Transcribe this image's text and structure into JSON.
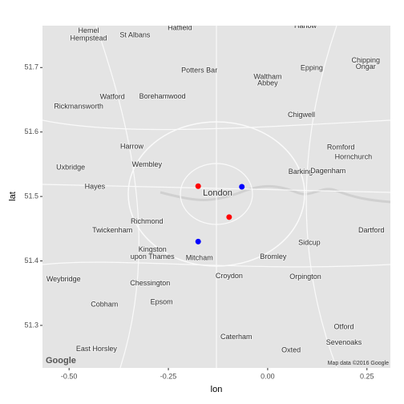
{
  "chart_data": {
    "type": "scatter",
    "x_label": "lon",
    "y_label": "lat",
    "xlim": [
      -0.567,
      0.309
    ],
    "ylim": [
      51.234,
      51.765
    ],
    "xticks": [
      {
        "value": -0.5,
        "label": "-0.50"
      },
      {
        "value": -0.25,
        "label": "-0.25"
      },
      {
        "value": 0,
        "label": "0.00"
      },
      {
        "value": 0.25,
        "label": "0.25"
      }
    ],
    "yticks": [
      51.3,
      51.4,
      51.5,
      51.6,
      51.7
    ],
    "x": [
      -0.175,
      -0.065,
      -0.097,
      -0.175
    ],
    "y": [
      51.516,
      51.515,
      51.468,
      51.43
    ],
    "colors": [
      "#ff0000",
      "#0000ff",
      "#ff0000",
      "#0000ff"
    ],
    "map_labels": [
      {
        "text": "Hemel",
        "lon": -0.451,
        "lat": 51.757
      },
      {
        "text": "Hempstead",
        "lon": -0.451,
        "lat": 51.745
      },
      {
        "text": "St Albans",
        "lon": -0.334,
        "lat": 51.75
      },
      {
        "text": "Hatfield",
        "lon": -0.221,
        "lat": 51.761
      },
      {
        "text": "Harlow",
        "lon": 0.095,
        "lat": 51.764
      },
      {
        "text": "Potters Bar",
        "lon": -0.172,
        "lat": 51.695
      },
      {
        "text": "Waltham",
        "lon": 0.0,
        "lat": 51.685
      },
      {
        "text": "Abbey",
        "lon": 0.0,
        "lat": 51.675
      },
      {
        "text": "Epping",
        "lon": 0.111,
        "lat": 51.699
      },
      {
        "text": "Chipping",
        "lon": 0.247,
        "lat": 51.711
      },
      {
        "text": "Ongar",
        "lon": 0.247,
        "lat": 51.701
      },
      {
        "text": "Watford",
        "lon": -0.391,
        "lat": 51.654
      },
      {
        "text": "Borehamwood",
        "lon": -0.265,
        "lat": 51.655
      },
      {
        "text": "Rickmansworth",
        "lon": -0.476,
        "lat": 51.639
      },
      {
        "text": "Chigwell",
        "lon": 0.085,
        "lat": 51.626
      },
      {
        "text": "Harrow",
        "lon": -0.342,
        "lat": 51.577
      },
      {
        "text": "Romford",
        "lon": 0.184,
        "lat": 51.576
      },
      {
        "text": "Hornchurch",
        "lon": 0.216,
        "lat": 51.561
      },
      {
        "text": "Wembley",
        "lon": -0.304,
        "lat": 51.549
      },
      {
        "text": "Uxbridge",
        "lon": -0.496,
        "lat": 51.545
      },
      {
        "text": "Barking",
        "lon": 0.083,
        "lat": 51.538
      },
      {
        "text": "Dagenham",
        "lon": 0.152,
        "lat": 51.539
      },
      {
        "text": "Hayes",
        "lon": -0.435,
        "lat": 51.515
      },
      {
        "text": "London",
        "lon": -0.126,
        "lat": 51.505
      },
      {
        "text": "Richmond",
        "lon": -0.304,
        "lat": 51.461
      },
      {
        "text": "Twickenham",
        "lon": -0.391,
        "lat": 51.447
      },
      {
        "text": "Dartford",
        "lon": 0.261,
        "lat": 51.447
      },
      {
        "text": "Sidcup",
        "lon": 0.105,
        "lat": 51.428
      },
      {
        "text": "Kingston",
        "lon": -0.29,
        "lat": 51.417
      },
      {
        "text": "upon Thames",
        "lon": -0.29,
        "lat": 51.406
      },
      {
        "text": "Mitcham",
        "lon": -0.172,
        "lat": 51.404
      },
      {
        "text": "Bromley",
        "lon": 0.014,
        "lat": 51.406
      },
      {
        "text": "Weybridge",
        "lon": -0.514,
        "lat": 51.371
      },
      {
        "text": "Croydon",
        "lon": -0.097,
        "lat": 51.376
      },
      {
        "text": "Orpington",
        "lon": 0.095,
        "lat": 51.375
      },
      {
        "text": "Chessington",
        "lon": -0.296,
        "lat": 51.365
      },
      {
        "text": "Epsom",
        "lon": -0.267,
        "lat": 51.336
      },
      {
        "text": "Cobham",
        "lon": -0.411,
        "lat": 51.332
      },
      {
        "text": "Caterham",
        "lon": -0.079,
        "lat": 51.282
      },
      {
        "text": "Otford",
        "lon": 0.192,
        "lat": 51.297
      },
      {
        "text": "Sevenoaks",
        "lon": 0.192,
        "lat": 51.273
      },
      {
        "text": "Oxted",
        "lon": 0.059,
        "lat": 51.261
      },
      {
        "text": "East Horsley",
        "lon": -0.431,
        "lat": 51.263
      }
    ],
    "logo": "Google",
    "attribution": "Map data ©2016 Google"
  }
}
